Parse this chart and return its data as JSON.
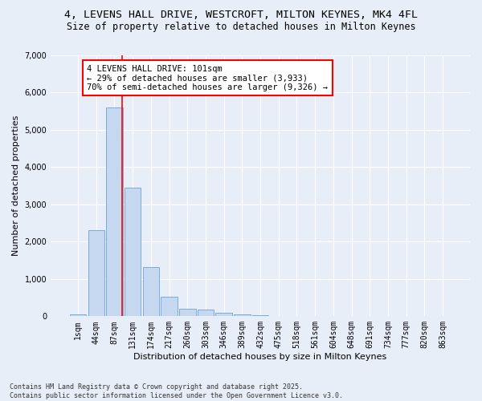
{
  "title_line1": "4, LEVENS HALL DRIVE, WESTCROFT, MILTON KEYNES, MK4 4FL",
  "title_line2": "Size of property relative to detached houses in Milton Keynes",
  "xlabel": "Distribution of detached houses by size in Milton Keynes",
  "ylabel": "Number of detached properties",
  "categories": [
    "1sqm",
    "44sqm",
    "87sqm",
    "131sqm",
    "174sqm",
    "217sqm",
    "260sqm",
    "303sqm",
    "346sqm",
    "389sqm",
    "432sqm",
    "475sqm",
    "518sqm",
    "561sqm",
    "604sqm",
    "648sqm",
    "691sqm",
    "734sqm",
    "777sqm",
    "820sqm",
    "863sqm"
  ],
  "bar_values": [
    60,
    2300,
    5600,
    3450,
    1320,
    520,
    210,
    175,
    90,
    60,
    35,
    0,
    0,
    0,
    0,
    0,
    0,
    0,
    0,
    0,
    0
  ],
  "bar_color": "#c5d8f0",
  "bar_edgecolor": "#6ba3d6",
  "vline_x_idx": 2,
  "vline_color": "red",
  "annotation_title": "4 LEVENS HALL DRIVE: 101sqm",
  "annotation_line2": "← 29% of detached houses are smaller (3,933)",
  "annotation_line3": "70% of semi-detached houses are larger (9,326) →",
  "annotation_box_color": "red",
  "annotation_bg": "white",
  "ylim": [
    0,
    7000
  ],
  "yticks": [
    0,
    1000,
    2000,
    3000,
    4000,
    5000,
    6000,
    7000
  ],
  "bg_color": "#e8eef8",
  "footnote_line1": "Contains HM Land Registry data © Crown copyright and database right 2025.",
  "footnote_line2": "Contains public sector information licensed under the Open Government Licence v3.0.",
  "title_fontsize": 9.5,
  "subtitle_fontsize": 8.5,
  "axis_label_fontsize": 8,
  "tick_fontsize": 7,
  "annotation_fontsize": 7.5,
  "footnote_fontsize": 6
}
